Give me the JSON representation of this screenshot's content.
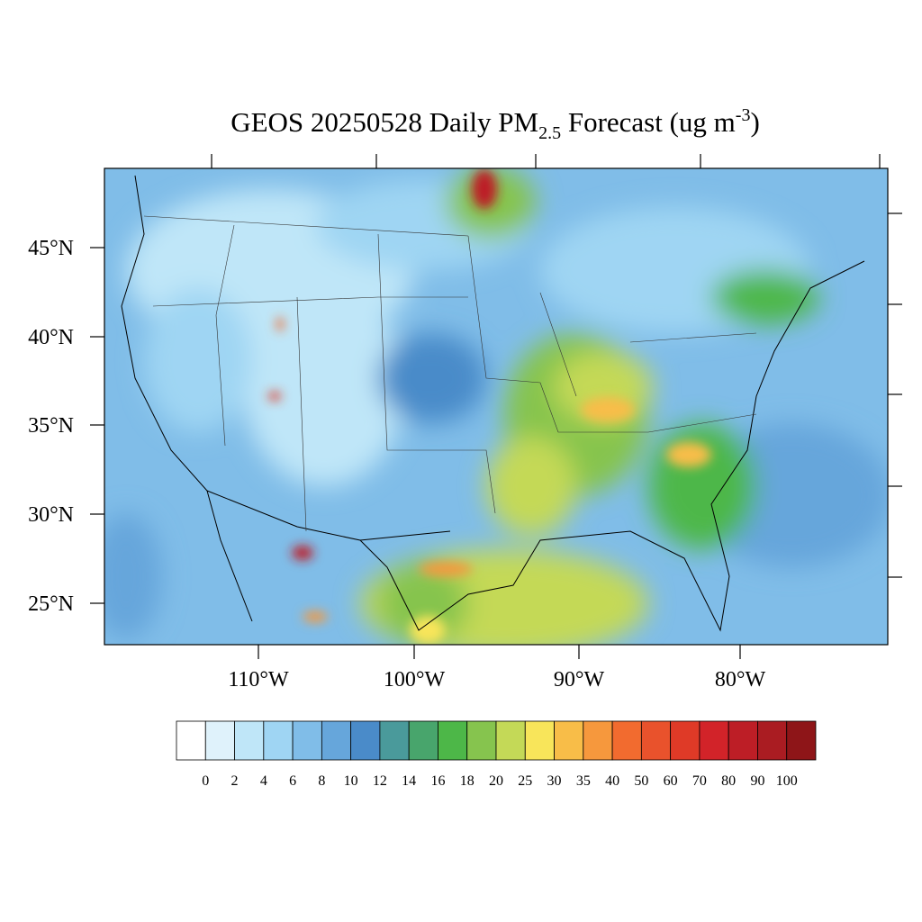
{
  "title": {
    "main": "GEOS 20250528 Daily PM",
    "sub": "2.5",
    "rest": " Forecast (ug m",
    "sup": "-3",
    "end": ")"
  },
  "lat_labels": [
    "45°N",
    "40°N",
    "35°N",
    "30°N",
    "25°N"
  ],
  "lon_labels": [
    "110°W",
    "100°W",
    "90°W",
    "80°W"
  ],
  "colorbar": {
    "colors": [
      "#ffffff",
      "#dff2fb",
      "#bfe6f8",
      "#9fd5f3",
      "#80bde8",
      "#66a6db",
      "#4a8bc9",
      "#4a9a9b",
      "#48a56c",
      "#4db748",
      "#86c44e",
      "#c4d957",
      "#f8e55a",
      "#f8bd48",
      "#f6983d",
      "#f26b2f",
      "#e9522c",
      "#df3a27",
      "#d22329",
      "#bd1e26",
      "#aa1c22",
      "#8e1518"
    ],
    "labels": [
      0,
      2,
      4,
      6,
      8,
      10,
      12,
      14,
      16,
      18,
      20,
      25,
      30,
      35,
      40,
      50,
      60,
      70,
      80,
      90,
      100
    ]
  }
}
